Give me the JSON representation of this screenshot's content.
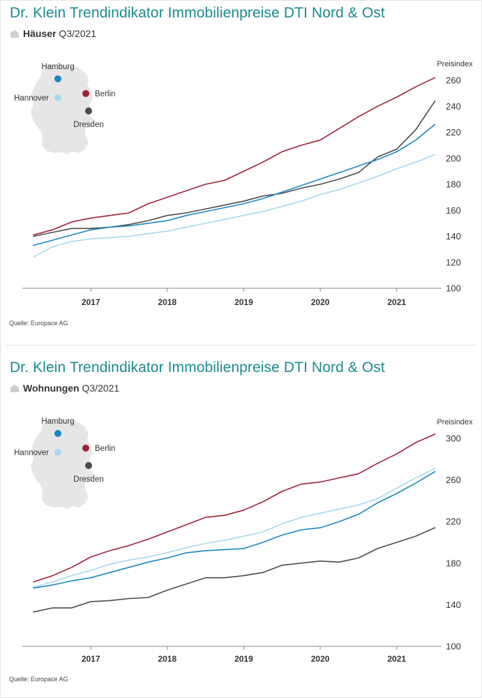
{
  "colors": {
    "title": "#1a8a8f",
    "hamburg": "#1a86bf",
    "hannover": "#a8d8ef",
    "berlin": "#9a2235",
    "dresden": "#4a4a4a",
    "map": "#e6e6e6",
    "axis": "#8a8a8a"
  },
  "icons": {
    "category": "house-icon"
  },
  "panels": [
    {
      "title": "Dr. Klein Trendindikator Immobilienpreise DTI Nord & Ost",
      "category": "Häuser",
      "quarter": "Q3/2021",
      "source": "Quelle: Europace AG",
      "map_labels": {
        "hamburg": "Hamburg",
        "hannover": "Hannover",
        "berlin": "Berlin",
        "dresden": "Dresden"
      }
    },
    {
      "title": "Dr. Klein Trendindikator Immobilienpreise DTI Nord & Ost",
      "category": "Wohnungen",
      "quarter": "Q3/2021",
      "source": "Quelle: Europace AG",
      "map_labels": {
        "hamburg": "Hamburg",
        "hannover": "Hannover",
        "berlin": "Berlin",
        "dresden": "Dresden"
      }
    }
  ],
  "chart_data": [
    {
      "type": "line",
      "title": "Dr. Klein Trendindikator Immobilienpreise DTI Nord & Ost",
      "subtitle": "Häuser Q3/2021",
      "ylabel": "Preisindex",
      "ylim": [
        100,
        260
      ],
      "yticks": [
        100,
        120,
        140,
        160,
        180,
        200,
        220,
        240,
        260
      ],
      "xlim": [
        2016.15,
        2021.55
      ],
      "xticks": [
        2017,
        2018,
        2019,
        2020,
        2021
      ],
      "x": [
        2016.25,
        2016.5,
        2016.75,
        2017.0,
        2017.25,
        2017.5,
        2017.75,
        2018.0,
        2018.25,
        2018.5,
        2018.75,
        2019.0,
        2019.25,
        2019.5,
        2019.75,
        2020.0,
        2020.25,
        2020.5,
        2020.75,
        2021.0,
        2021.25,
        2021.5
      ],
      "grid": false,
      "legend": "map-top-left",
      "series": [
        {
          "name": "Berlin",
          "key": "berlin",
          "values": [
            141,
            145,
            151,
            154,
            156,
            158,
            165,
            170,
            175,
            180,
            183,
            190,
            197,
            205,
            210,
            214,
            223,
            232,
            240,
            247,
            255,
            262
          ]
        },
        {
          "name": "Dresden",
          "key": "dresden",
          "values": [
            140,
            143,
            146,
            146,
            147,
            149,
            152,
            156,
            158,
            161,
            164,
            167,
            171,
            173,
            177,
            180,
            184,
            189,
            201,
            207,
            222,
            244
          ]
        },
        {
          "name": "Hamburg",
          "key": "hamburg",
          "values": [
            133,
            137,
            141,
            145,
            147,
            148,
            150,
            152,
            156,
            159,
            162,
            165,
            169,
            174,
            179,
            184,
            189,
            194,
            199,
            205,
            214,
            226
          ]
        },
        {
          "name": "Hannover",
          "key": "hannover",
          "values": [
            124,
            132,
            136,
            138,
            139,
            140,
            142,
            144,
            147,
            150,
            153,
            156,
            159,
            163,
            167,
            172,
            176,
            181,
            186,
            192,
            197,
            203
          ]
        }
      ]
    },
    {
      "type": "line",
      "title": "Dr. Klein Trendindikator Immobilienpreise DTI Nord & Ost",
      "subtitle": "Wohnungen Q3/2021",
      "ylabel": "Preisindex",
      "ylim": [
        100,
        300
      ],
      "yticks": [
        100,
        140,
        180,
        220,
        260,
        300
      ],
      "xlim": [
        2016.15,
        2021.55
      ],
      "xticks": [
        2017,
        2018,
        2019,
        2020,
        2021
      ],
      "x": [
        2016.25,
        2016.5,
        2016.75,
        2017.0,
        2017.25,
        2017.5,
        2017.75,
        2018.0,
        2018.25,
        2018.5,
        2018.75,
        2019.0,
        2019.25,
        2019.5,
        2019.75,
        2020.0,
        2020.25,
        2020.5,
        2020.75,
        2021.0,
        2021.25,
        2021.5
      ],
      "grid": false,
      "legend": "map-top-left",
      "series": [
        {
          "name": "Berlin",
          "key": "berlin",
          "values": [
            162,
            168,
            176,
            186,
            192,
            197,
            203,
            210,
            217,
            224,
            226,
            231,
            239,
            249,
            256,
            258,
            262,
            266,
            276,
            285,
            296,
            304
          ]
        },
        {
          "name": "Hannover",
          "key": "hannover",
          "values": [
            157,
            162,
            168,
            173,
            179,
            183,
            186,
            190,
            195,
            199,
            202,
            206,
            210,
            218,
            224,
            228,
            232,
            236,
            242,
            252,
            262,
            271
          ]
        },
        {
          "name": "Hamburg",
          "key": "hamburg",
          "values": [
            156,
            159,
            163,
            166,
            171,
            176,
            181,
            185,
            190,
            192,
            193,
            194,
            200,
            207,
            212,
            214,
            220,
            227,
            238,
            247,
            257,
            268
          ]
        },
        {
          "name": "Dresden",
          "key": "dresden",
          "values": [
            133,
            137,
            137,
            143,
            144,
            146,
            147,
            154,
            160,
            166,
            166,
            168,
            171,
            178,
            180,
            182,
            181,
            185,
            194,
            200,
            206,
            214
          ]
        }
      ]
    }
  ]
}
